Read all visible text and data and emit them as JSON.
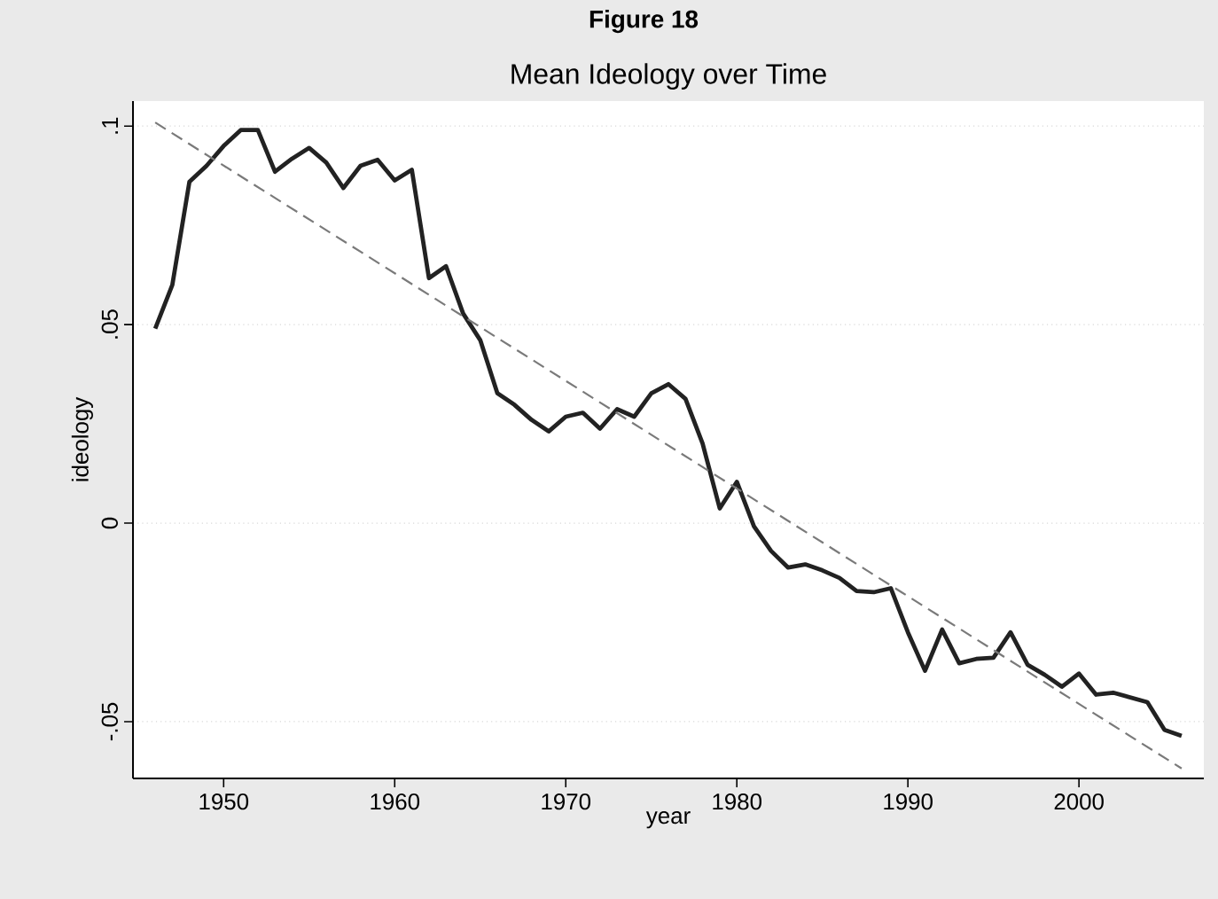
{
  "chart_data": {
    "type": "line",
    "title": "Mean Ideology over Time",
    "xlabel": "year",
    "ylabel": "ideology",
    "annotations": [
      "Figure 18"
    ],
    "x": [
      1946,
      1947,
      1948,
      1949,
      1950,
      1951,
      1952,
      1953,
      1954,
      1955,
      1956,
      1957,
      1958,
      1959,
      1960,
      1961,
      1962,
      1963,
      1964,
      1965,
      1966,
      1967,
      1968,
      1969,
      1970,
      1971,
      1972,
      1973,
      1974,
      1975,
      1976,
      1977,
      1978,
      1979,
      1980,
      1981,
      1982,
      1983,
      1984,
      1985,
      1986,
      1987,
      1988,
      1989,
      1990,
      1991,
      1992,
      1993,
      1994,
      1995,
      1996,
      1997,
      1998,
      1999,
      2000,
      2001,
      2002,
      2003,
      2004,
      2005,
      2006
    ],
    "series": [
      {
        "color": "#222222",
        "line_style": "solid",
        "values": [
          0.049,
          0.06,
          0.086,
          0.09,
          0.095,
          0.099,
          0.099,
          0.0885,
          0.0918,
          0.0945,
          0.0908,
          0.0844,
          0.09,
          0.0915,
          0.0863,
          0.089,
          0.0617,
          0.0647,
          0.0528,
          0.0461,
          0.0327,
          0.0298,
          0.026,
          0.0231,
          0.0268,
          0.0278,
          0.0238,
          0.0287,
          0.0268,
          0.0327,
          0.035,
          0.0313,
          0.02,
          0.0037,
          0.0104,
          -0.0008,
          -0.007,
          -0.0112,
          -0.0104,
          -0.0119,
          -0.0138,
          -0.0171,
          -0.0174,
          -0.0164,
          -0.0275,
          -0.0372,
          -0.0268,
          -0.0353,
          -0.0342,
          -0.0339,
          -0.0275,
          -0.0357,
          -0.0382,
          -0.0412,
          -0.0379,
          -0.0432,
          -0.0427,
          -0.0439,
          -0.0451,
          -0.0521,
          -0.0536
        ]
      },
      {
        "type": "line",
        "color": "#7a7a7a",
        "line_style": "dashed",
        "x": [
          1946,
          2006
        ],
        "values": [
          0.1009,
          -0.0618
        ]
      }
    ],
    "xlim": [
      1944.7,
      2007.3
    ],
    "ylim": [
      -0.0643,
      0.1063
    ],
    "xticks": [
      1950,
      1960,
      1970,
      1980,
      1990,
      2000
    ],
    "yticks": [
      {
        "value": -0.05,
        "label": "-.05"
      },
      0,
      {
        "value": 0.05,
        "label": ".05"
      },
      {
        "value": 0.1,
        "label": ".1"
      }
    ],
    "grid": "y",
    "marker": "none"
  }
}
